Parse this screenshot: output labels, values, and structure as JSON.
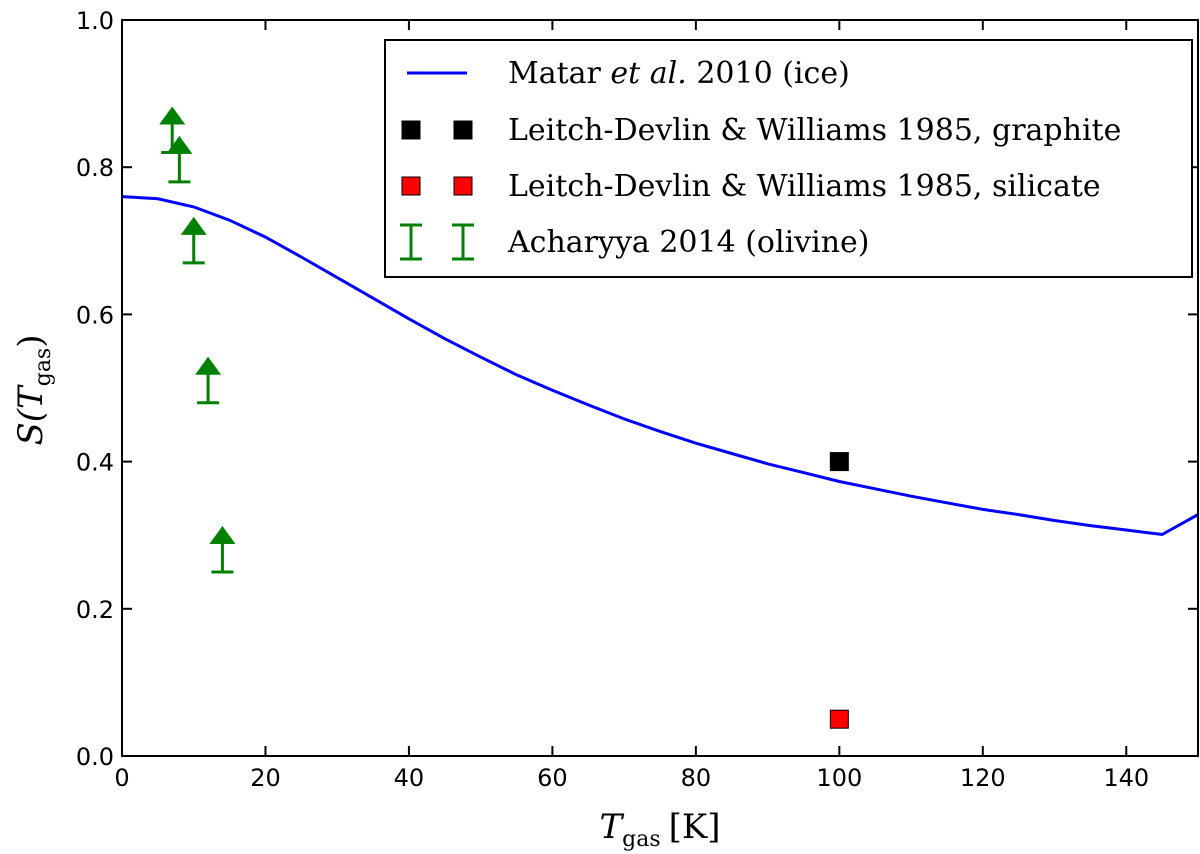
{
  "chart_data": {
    "type": "scatter",
    "xlabel": {
      "symbol": "T",
      "subscript": "gas",
      "unit": "[K]"
    },
    "ylabel": {
      "prefix": "S(",
      "symbol": "T",
      "subscript": "gas",
      "suffix": ")"
    },
    "xlim": [
      0,
      150
    ],
    "ylim": [
      0.0,
      1.0
    ],
    "xticks": [
      0,
      20,
      40,
      60,
      80,
      100,
      120,
      140
    ],
    "xtick_labels": [
      "0",
      "20",
      "40",
      "60",
      "80",
      "100",
      "120",
      "140"
    ],
    "yticks": [
      0.0,
      0.2,
      0.4,
      0.6,
      0.8,
      1.0
    ],
    "ytick_labels": [
      "0.0",
      "0.2",
      "0.4",
      "0.6",
      "0.8",
      "1.0"
    ],
    "grid": false,
    "legend_position": "top-right",
    "series": [
      {
        "name": "Matar et al. 2010 (ice)",
        "legend": {
          "before": "Matar ",
          "italic": "et al.",
          "after": " 2010 (ice)"
        },
        "kind": "line",
        "color": "#0000ff",
        "x": [
          0,
          5,
          10,
          15,
          20,
          25,
          30,
          35,
          40,
          45,
          50,
          55,
          60,
          65,
          70,
          75,
          80,
          85,
          90,
          95,
          100,
          105,
          110,
          115,
          120,
          125,
          130,
          135,
          140,
          145,
          150
        ],
        "y": [
          0.76,
          0.757,
          0.746,
          0.728,
          0.705,
          0.678,
          0.65,
          0.622,
          0.594,
          0.567,
          0.542,
          0.518,
          0.497,
          0.477,
          0.458,
          0.441,
          0.425,
          0.411,
          0.397,
          0.385,
          0.373,
          0.363,
          0.353,
          0.344,
          0.335,
          0.328,
          0.32,
          0.313,
          0.307,
          0.301,
          0.328
        ]
      },
      {
        "name": "Leitch-Devlin & Williams 1985, graphite",
        "legend": {
          "before": "Leitch-Devlin & Williams 1985, graphite",
          "italic": "",
          "after": ""
        },
        "kind": "square",
        "color": "#000000",
        "x": [
          100
        ],
        "y": [
          0.4
        ]
      },
      {
        "name": "Leitch-Devlin & Williams 1985, silicate",
        "legend": {
          "before": "Leitch-Devlin & Williams 1985, silicate",
          "italic": "",
          "after": ""
        },
        "kind": "square",
        "color": "#ff0000",
        "x": [
          100
        ],
        "y": [
          0.05
        ]
      },
      {
        "name": "Acharyya 2014 (olivine)",
        "legend": {
          "before": "Acharyya 2014 (olivine)",
          "italic": "",
          "after": ""
        },
        "kind": "lower-limit",
        "color": "#008000",
        "x": [
          7,
          8,
          10,
          12,
          14
        ],
        "y": [
          0.82,
          0.78,
          0.67,
          0.48,
          0.25
        ]
      }
    ]
  }
}
